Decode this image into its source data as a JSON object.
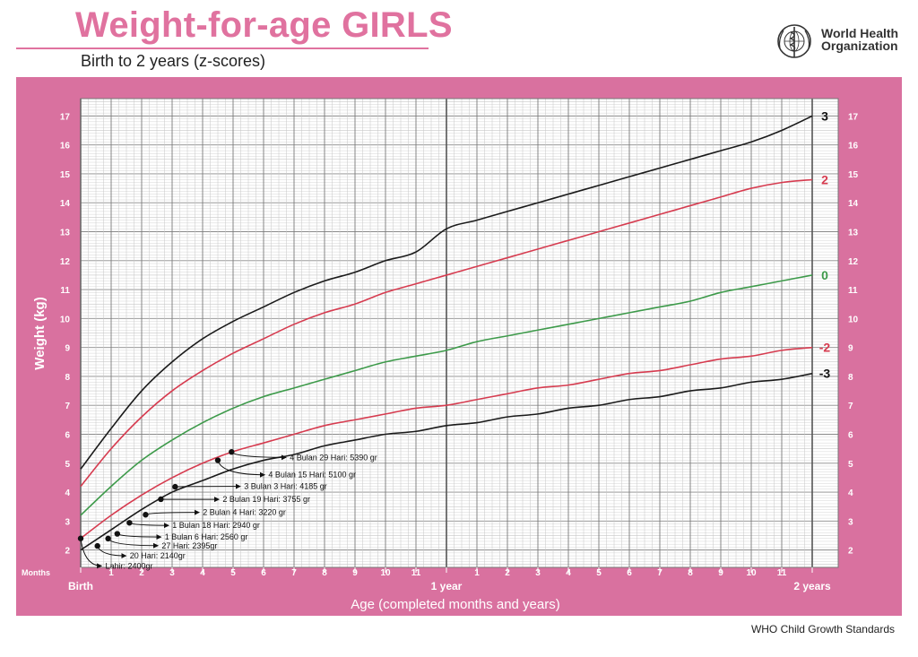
{
  "header": {
    "title": "Weight-for-age GIRLS",
    "subtitle": "Birth to 2 years (z-scores)",
    "org_line1": "World Health",
    "org_line2": "Organization",
    "logo_icon": "who-emblem-icon"
  },
  "footer": {
    "text": "WHO Child Growth Standards"
  },
  "colors": {
    "panel": "#d9719f",
    "sd3": "#1a1a1a",
    "sd2": "#d63b4f",
    "median": "#3d9a4a"
  },
  "chart_data": {
    "type": "line",
    "ylabel": "Weight (kg)",
    "xlabel": "Age (completed months and years)",
    "months_label": "Months",
    "xlim": [
      0,
      24
    ],
    "ylim": [
      1.4,
      17.6
    ],
    "yticks": [
      2,
      3,
      4,
      5,
      6,
      7,
      8,
      9,
      10,
      11,
      12,
      13,
      14,
      15,
      16,
      17
    ],
    "x_tick_labels": [
      {
        "x": 0,
        "label": "Birth"
      },
      {
        "x": 1,
        "label": "1"
      },
      {
        "x": 2,
        "label": "2"
      },
      {
        "x": 3,
        "label": "3"
      },
      {
        "x": 4,
        "label": "4"
      },
      {
        "x": 5,
        "label": "5"
      },
      {
        "x": 6,
        "label": "6"
      },
      {
        "x": 7,
        "label": "7"
      },
      {
        "x": 8,
        "label": "8"
      },
      {
        "x": 9,
        "label": "9"
      },
      {
        "x": 10,
        "label": "10"
      },
      {
        "x": 11,
        "label": "11"
      },
      {
        "x": 12,
        "label": "1 year"
      },
      {
        "x": 13,
        "label": "1"
      },
      {
        "x": 14,
        "label": "2"
      },
      {
        "x": 15,
        "label": "3"
      },
      {
        "x": 16,
        "label": "4"
      },
      {
        "x": 17,
        "label": "5"
      },
      {
        "x": 18,
        "label": "6"
      },
      {
        "x": 19,
        "label": "7"
      },
      {
        "x": 20,
        "label": "8"
      },
      {
        "x": 21,
        "label": "9"
      },
      {
        "x": 22,
        "label": "10"
      },
      {
        "x": 23,
        "label": "11"
      },
      {
        "x": 24,
        "label": "2 years"
      }
    ],
    "x": [
      0,
      1,
      2,
      3,
      4,
      5,
      6,
      7,
      8,
      9,
      10,
      11,
      12,
      13,
      14,
      15,
      16,
      17,
      18,
      19,
      20,
      21,
      22,
      23,
      24
    ],
    "series": [
      {
        "name": "3",
        "color": "#1a1a1a",
        "values": [
          4.8,
          6.2,
          7.5,
          8.5,
          9.3,
          9.9,
          10.4,
          10.9,
          11.3,
          11.6,
          12.0,
          12.3,
          13.1,
          13.4,
          13.7,
          14.0,
          14.3,
          14.6,
          14.9,
          15.2,
          15.5,
          15.8,
          16.1,
          16.5,
          17.0
        ]
      },
      {
        "name": "2",
        "color": "#d63b4f",
        "values": [
          4.2,
          5.5,
          6.6,
          7.5,
          8.2,
          8.8,
          9.3,
          9.8,
          10.2,
          10.5,
          10.9,
          11.2,
          11.5,
          11.8,
          12.1,
          12.4,
          12.7,
          13.0,
          13.3,
          13.6,
          13.9,
          14.2,
          14.5,
          14.7,
          14.8
        ]
      },
      {
        "name": "0",
        "color": "#3d9a4a",
        "values": [
          3.2,
          4.2,
          5.1,
          5.8,
          6.4,
          6.9,
          7.3,
          7.6,
          7.9,
          8.2,
          8.5,
          8.7,
          8.9,
          9.2,
          9.4,
          9.6,
          9.8,
          10.0,
          10.2,
          10.4,
          10.6,
          10.9,
          11.1,
          11.3,
          11.5
        ]
      },
      {
        "name": "-2",
        "color": "#d63b4f",
        "values": [
          2.4,
          3.2,
          3.9,
          4.5,
          5.0,
          5.4,
          5.7,
          6.0,
          6.3,
          6.5,
          6.7,
          6.9,
          7.0,
          7.2,
          7.4,
          7.6,
          7.7,
          7.9,
          8.1,
          8.2,
          8.4,
          8.6,
          8.7,
          8.9,
          9.0
        ]
      },
      {
        "name": "-3",
        "color": "#1a1a1a",
        "values": [
          2.0,
          2.7,
          3.4,
          4.0,
          4.4,
          4.8,
          5.1,
          5.3,
          5.6,
          5.8,
          6.0,
          6.1,
          6.3,
          6.4,
          6.6,
          6.7,
          6.9,
          7.0,
          7.2,
          7.3,
          7.5,
          7.6,
          7.8,
          7.9,
          8.1
        ]
      }
    ],
    "annotations": [
      {
        "x": 0.0,
        "y": 2.4,
        "text": "Lahir: 2400gr",
        "lx": 0.75,
        "ly": 1.45
      },
      {
        "x": 0.55,
        "y": 2.14,
        "text": "20 Hari: 2140gr",
        "lx": 1.55,
        "ly": 1.8
      },
      {
        "x": 0.9,
        "y": 2.395,
        "text": "27 Hari: 2395gr",
        "lx": 2.6,
        "ly": 2.15
      },
      {
        "x": 1.2,
        "y": 2.56,
        "text": "1 Bulan 6 Hari: 2560 gr",
        "lx": 2.7,
        "ly": 2.45
      },
      {
        "x": 1.6,
        "y": 2.94,
        "text": "1 Bulan 18 Hari: 2940 gr",
        "lx": 2.95,
        "ly": 2.85
      },
      {
        "x": 2.13,
        "y": 3.22,
        "text": "2 Bulan 4 Hari: 3220 gr",
        "lx": 3.95,
        "ly": 3.3
      },
      {
        "x": 2.63,
        "y": 3.755,
        "text": "2 Bulan 19 Hari: 3755 gr",
        "lx": 4.6,
        "ly": 3.75
      },
      {
        "x": 3.1,
        "y": 4.185,
        "text": "3 Bulan 3 Hari: 4185 gr",
        "lx": 5.3,
        "ly": 4.2
      },
      {
        "x": 4.5,
        "y": 5.1,
        "text": "4 Bulan 15 Hari: 5100 gr",
        "lx": 6.1,
        "ly": 4.6
      },
      {
        "x": 4.95,
        "y": 5.39,
        "text": "4 Bulan 29 Hari: 5390 gr",
        "lx": 6.8,
        "ly": 5.2
      }
    ]
  }
}
